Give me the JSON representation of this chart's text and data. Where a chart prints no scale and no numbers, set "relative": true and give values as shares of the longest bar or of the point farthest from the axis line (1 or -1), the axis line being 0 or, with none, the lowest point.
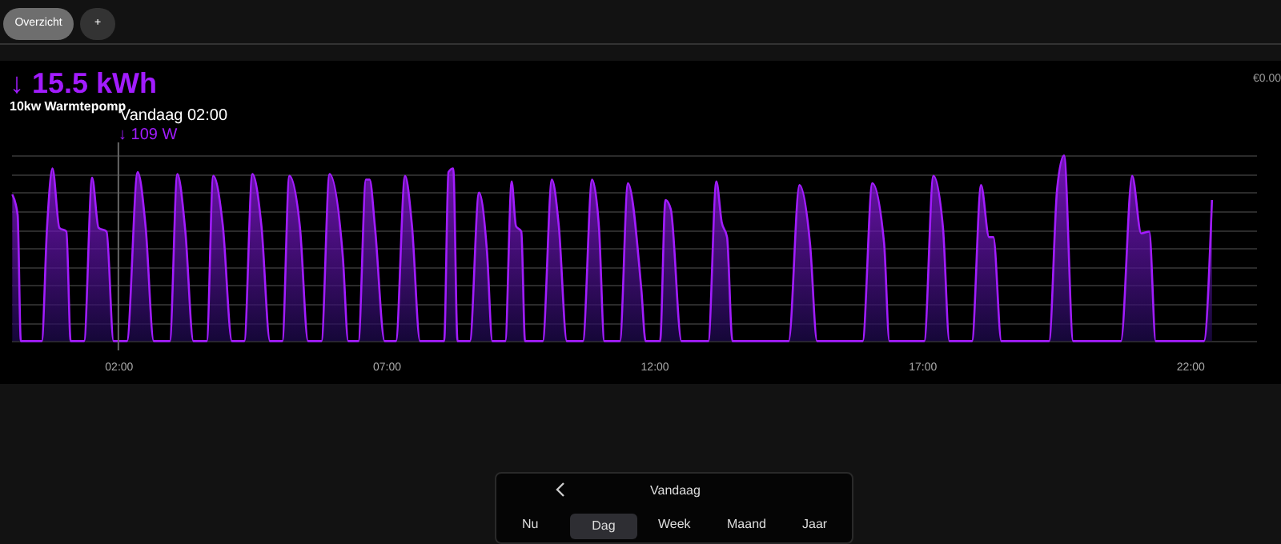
{
  "chart_data": {
    "type": "area",
    "title": "↓ 15.5 kWh",
    "subtitle": "10kw Warmtepomp",
    "relative": true,
    "grid": true,
    "xlim": [
      0,
      23.25
    ],
    "xticks": [
      {
        "value": 2,
        "label": "02:00"
      },
      {
        "value": 7,
        "label": "07:00"
      },
      {
        "value": 12,
        "label": "12:00"
      },
      {
        "value": 17,
        "label": "17:00"
      },
      {
        "value": 22,
        "label": "22:00"
      }
    ],
    "ref_lines": [
      {
        "axis": "x",
        "value": 2,
        "label": "Vandaag 02:00",
        "color": "#666666"
      }
    ],
    "annotations": [
      "Overzicht",
      "+",
      "€0.00",
      "↓ 109 W",
      "Vandaag",
      "Nu",
      "Dag",
      "Week",
      "Maand",
      "Jaar"
    ],
    "series": [
      {
        "color": "#a21cff",
        "x": [
          0.02,
          0.12,
          0.18,
          0.57,
          0.67,
          0.77,
          0.9,
          1.03,
          1.11,
          1.36,
          1.51,
          1.63,
          1.78,
          1.91,
          2.16,
          2.36,
          2.51,
          2.66,
          2.96,
          3.1,
          3.25,
          3.4,
          3.65,
          3.77,
          3.95,
          4.12,
          4.35,
          4.5,
          4.67,
          4.83,
          5.06,
          5.19,
          5.39,
          5.54,
          5.79,
          5.94,
          6.19,
          6.29,
          6.48,
          6.62,
          6.69,
          6.79,
          6.97,
          7.18,
          7.35,
          7.48,
          7.63,
          8.08,
          8.16,
          8.25,
          8.33,
          8.56,
          8.73,
          8.88,
          8.98,
          9.22,
          9.34,
          9.42,
          9.52,
          9.59,
          9.92,
          10.09,
          10.22,
          10.37,
          10.67,
          10.84,
          10.97,
          11.07,
          11.36,
          11.51,
          11.76,
          11.84,
          12.11,
          12.21,
          12.31,
          12.51,
          13.01,
          13.16,
          13.26,
          13.36,
          13.46,
          14.51,
          14.71,
          14.91,
          15.04,
          15.89,
          16.07,
          16.29,
          16.39,
          17.04,
          17.21,
          17.39,
          17.51,
          17.93,
          18.1,
          18.25,
          18.33,
          18.48,
          19.37,
          19.52,
          19.65,
          19.82,
          20.71,
          20.92,
          21.09,
          21.24,
          21.36,
          22.26,
          22.41
        ],
        "values": [
          0.79,
          0.68,
          0,
          0,
          0.62,
          0.93,
          0.61,
          0.59,
          0,
          0,
          0.88,
          0.61,
          0.59,
          0,
          0,
          0.91,
          0.61,
          0,
          0,
          0.9,
          0.59,
          0,
          0,
          0.89,
          0.62,
          0,
          0,
          0.9,
          0.62,
          0,
          0,
          0.89,
          0.61,
          0,
          0,
          0.9,
          0.45,
          0,
          0,
          0.87,
          0.87,
          0.61,
          0,
          0,
          0.89,
          0.62,
          0,
          0,
          0.91,
          0.93,
          0,
          0,
          0.8,
          0.48,
          0,
          0,
          0.86,
          0.62,
          0.59,
          0,
          0,
          0.87,
          0.62,
          0,
          0,
          0.87,
          0.61,
          0,
          0,
          0.85,
          0.28,
          0,
          0,
          0.76,
          0.71,
          0,
          0,
          0.86,
          0.64,
          0.56,
          0,
          0,
          0.84,
          0.52,
          0,
          0,
          0.85,
          0.53,
          0,
          0,
          0.89,
          0.61,
          0,
          0,
          0.84,
          0.56,
          0.56,
          0,
          0,
          0.82,
          1,
          0,
          0,
          0.89,
          0.58,
          0.59,
          0,
          0,
          0.76
        ]
      }
    ]
  }
}
